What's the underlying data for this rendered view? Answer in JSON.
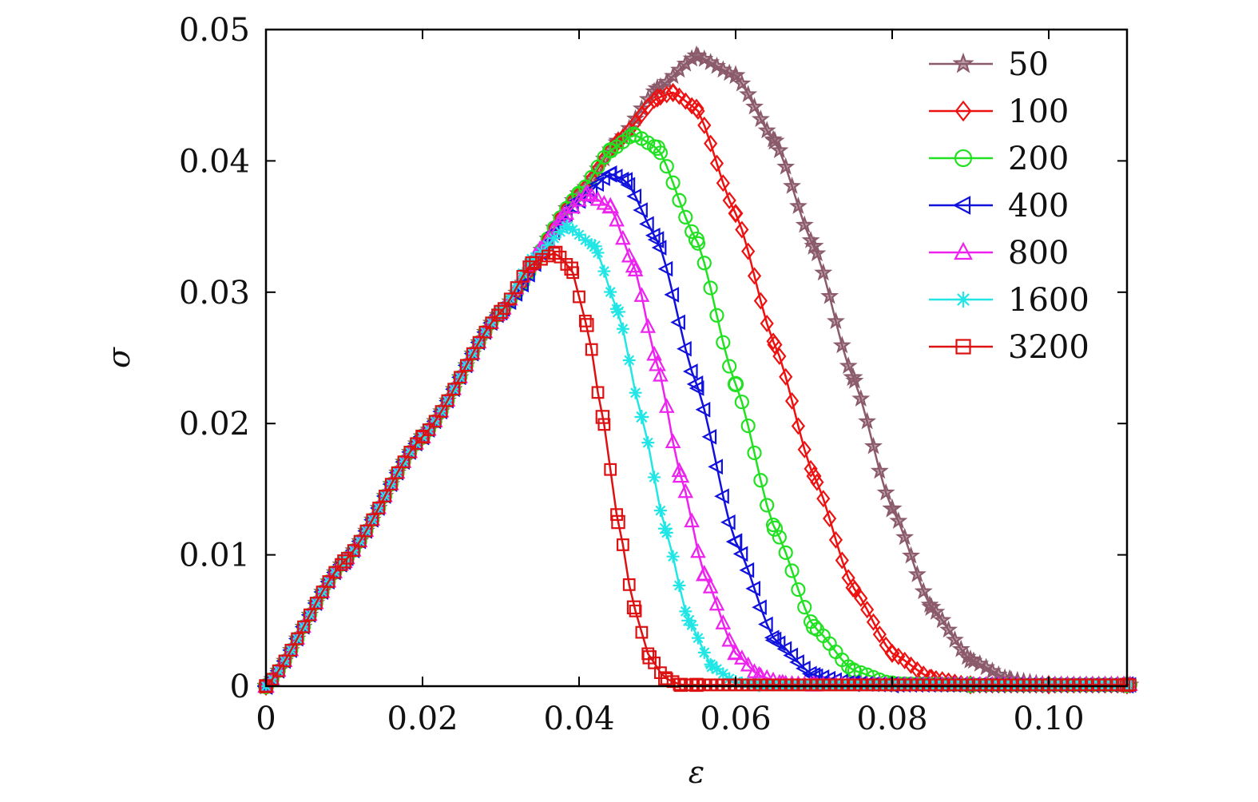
{
  "chart_data": {
    "type": "line",
    "xlabel": "ε",
    "ylabel": "σ",
    "xlim": [
      0,
      0.11
    ],
    "ylim": [
      0,
      0.05
    ],
    "xticks": [
      0,
      0.02,
      0.04,
      0.06,
      0.08,
      0.1
    ],
    "xtick_labels": [
      "0",
      "0.02",
      "0.04",
      "0.06",
      "0.08",
      "0.10"
    ],
    "yticks": [
      0,
      0.01,
      0.02,
      0.03,
      0.04,
      0.05
    ],
    "ytick_labels": [
      "0",
      "0.01",
      "0.02",
      "0.03",
      "0.04",
      "0.05"
    ],
    "grid": false,
    "legend_position": "top-right",
    "series": [
      {
        "name": "50",
        "color": "#8B5A6B",
        "marker": "star",
        "x": [
          0,
          0.01,
          0.02,
          0.03,
          0.04,
          0.045,
          0.05,
          0.055,
          0.06,
          0.065,
          0.07,
          0.075,
          0.08,
          0.085,
          0.09,
          0.095,
          0.1,
          0.11
        ],
        "y": [
          0,
          0.0095,
          0.019,
          0.0285,
          0.0375,
          0.0415,
          0.0455,
          0.048,
          0.0465,
          0.0415,
          0.0335,
          0.0235,
          0.0135,
          0.006,
          0.002,
          0.0005,
          0.0001,
          0.0001
        ]
      },
      {
        "name": "100",
        "color": "#EE1111",
        "marker": "diamond",
        "x": [
          0,
          0.01,
          0.02,
          0.03,
          0.04,
          0.045,
          0.05,
          0.052,
          0.055,
          0.06,
          0.065,
          0.07,
          0.075,
          0.08,
          0.085,
          0.09,
          0.1,
          0.11
        ],
        "y": [
          0,
          0.0095,
          0.019,
          0.0285,
          0.0375,
          0.0415,
          0.0448,
          0.0452,
          0.044,
          0.036,
          0.026,
          0.016,
          0.0075,
          0.0025,
          0.0006,
          0.0001,
          0.0001,
          0.0001
        ]
      },
      {
        "name": "200",
        "color": "#22E022",
        "marker": "circle",
        "x": [
          0,
          0.01,
          0.02,
          0.03,
          0.04,
          0.044,
          0.047,
          0.05,
          0.055,
          0.06,
          0.065,
          0.07,
          0.075,
          0.08,
          0.09,
          0.11
        ],
        "y": [
          0,
          0.0095,
          0.019,
          0.0285,
          0.0375,
          0.0408,
          0.042,
          0.041,
          0.034,
          0.023,
          0.012,
          0.0045,
          0.0012,
          0.0002,
          0.0001,
          0.0001
        ]
      },
      {
        "name": "400",
        "color": "#1111DD",
        "marker": "triangle-left",
        "x": [
          0,
          0.01,
          0.02,
          0.03,
          0.04,
          0.044,
          0.046,
          0.05,
          0.055,
          0.06,
          0.065,
          0.07,
          0.075,
          0.08,
          0.11
        ],
        "y": [
          0,
          0.0095,
          0.019,
          0.0285,
          0.037,
          0.039,
          0.0385,
          0.034,
          0.023,
          0.011,
          0.0035,
          0.0008,
          0.0002,
          0.0001,
          0.0001
        ]
      },
      {
        "name": "800",
        "color": "#EE22EE",
        "marker": "triangle-up",
        "x": [
          0,
          0.01,
          0.02,
          0.03,
          0.035,
          0.038,
          0.041,
          0.044,
          0.047,
          0.05,
          0.053,
          0.056,
          0.06,
          0.063,
          0.066,
          0.07,
          0.11
        ],
        "y": [
          0,
          0.0095,
          0.019,
          0.0285,
          0.0332,
          0.0358,
          0.0375,
          0.0365,
          0.032,
          0.0245,
          0.016,
          0.0085,
          0.0025,
          0.0008,
          0.0002,
          0.0001,
          0.0001
        ]
      },
      {
        "name": "1600",
        "color": "#22E6E6",
        "marker": "asterisk",
        "x": [
          0,
          0.01,
          0.02,
          0.03,
          0.034,
          0.0385,
          0.042,
          0.045,
          0.048,
          0.051,
          0.054,
          0.057,
          0.06,
          0.063,
          0.11
        ],
        "y": [
          0,
          0.0095,
          0.019,
          0.0285,
          0.0325,
          0.035,
          0.0335,
          0.0285,
          0.0205,
          0.012,
          0.005,
          0.0015,
          0.0003,
          0.0001,
          0.0001
        ]
      },
      {
        "name": "3200",
        "color": "#DD1111",
        "marker": "square",
        "x": [
          0,
          0.01,
          0.02,
          0.03,
          0.034,
          0.037,
          0.039,
          0.041,
          0.043,
          0.045,
          0.047,
          0.049,
          0.051,
          0.053,
          0.055,
          0.11
        ],
        "y": [
          0,
          0.0095,
          0.019,
          0.0285,
          0.0322,
          0.033,
          0.0318,
          0.0275,
          0.0205,
          0.0125,
          0.006,
          0.0022,
          0.0006,
          0.0001,
          0.0001,
          0.0001
        ]
      }
    ]
  }
}
